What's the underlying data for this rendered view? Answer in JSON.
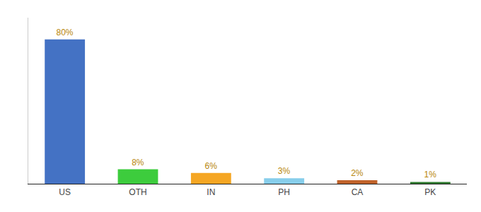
{
  "chart_data": {
    "type": "bar",
    "categories": [
      "US",
      "OTH",
      "IN",
      "PH",
      "CA",
      "PK"
    ],
    "values": [
      80,
      8,
      6,
      3,
      2,
      1
    ],
    "value_labels": [
      "80%",
      "8%",
      "6%",
      "3%",
      "2%",
      "1%"
    ],
    "colors": [
      "#4472c4",
      "#3dcc3d",
      "#f5a623",
      "#87ceeb",
      "#c0622a",
      "#2d7a2d"
    ],
    "ylim": [
      0,
      92
    ],
    "data_labels": true,
    "tick_labels": "x",
    "grid": false
  }
}
